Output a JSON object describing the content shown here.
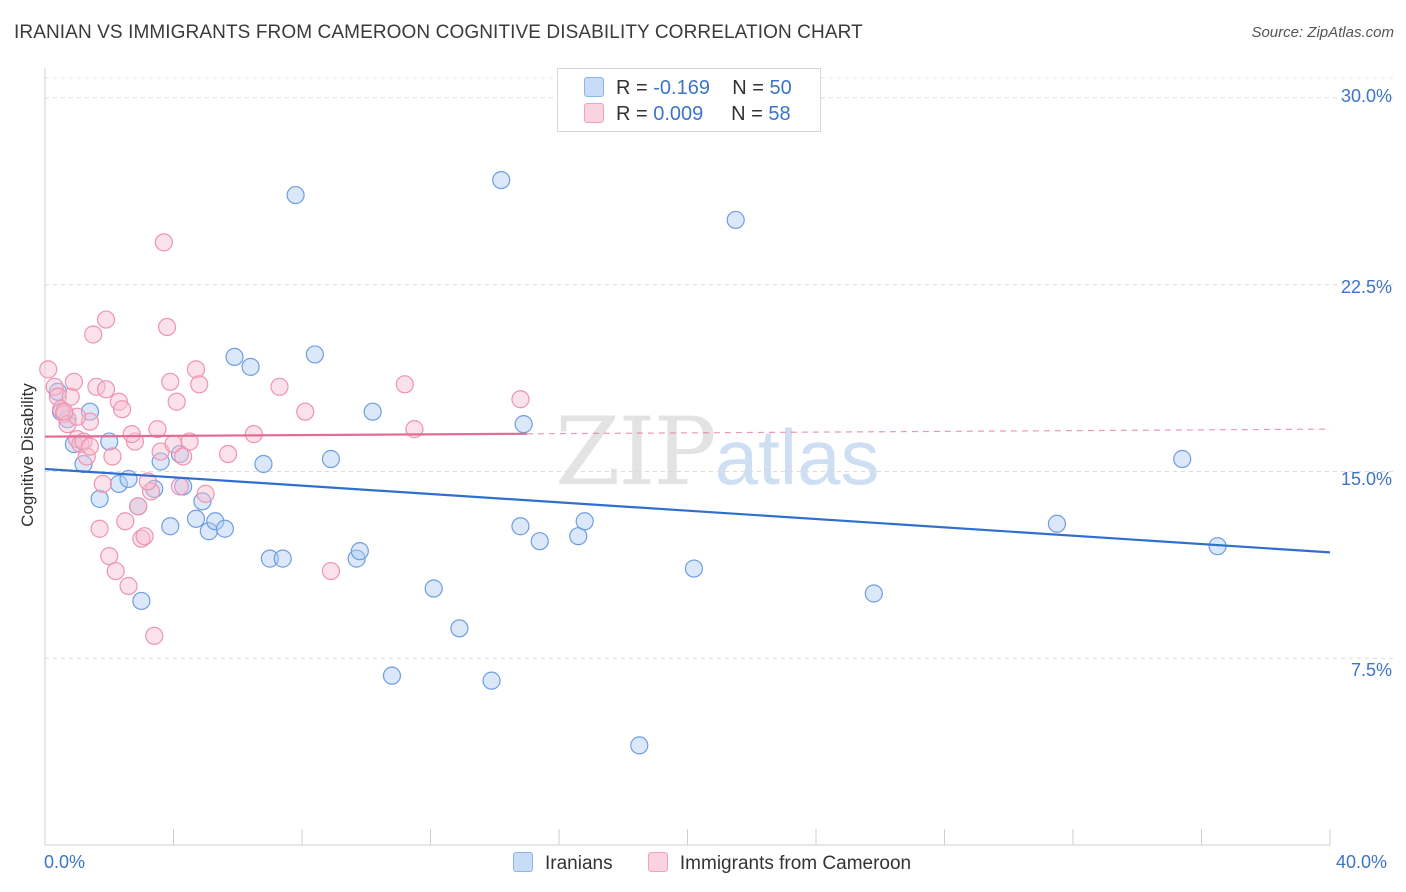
{
  "title": "IRANIAN VS IMMIGRANTS FROM CAMEROON COGNITIVE DISABILITY CORRELATION CHART",
  "source": "Source: ZipAtlas.com",
  "watermark": {
    "zip": "ZIP",
    "atlas": "atlas"
  },
  "legend": {
    "rows": [
      {
        "r_label": "R =",
        "r_value": "-0.169",
        "n_label": "N =",
        "n_value": "50",
        "color": "#aecbf2"
      },
      {
        "r_label": "R =",
        "r_value": "0.009",
        "n_label": "N =",
        "n_value": "58",
        "color": "#f7bfd0"
      }
    ]
  },
  "bottom_legend": [
    {
      "label": "Iranians",
      "color": "#aecbf2"
    },
    {
      "label": "Immigrants from Cameroon",
      "color": "#f7bfd0"
    }
  ],
  "chart_data": {
    "type": "scatter",
    "title": "IRANIAN VS IMMIGRANTS FROM CAMEROON COGNITIVE DISABILITY CORRELATION CHART",
    "xlabel": "",
    "ylabel": "Cognitive Disability",
    "xlim": [
      0,
      40
    ],
    "ylim": [
      0,
      30.8
    ],
    "x_tick_labels": [
      "0.0%",
      "40.0%"
    ],
    "y_ticks": [
      7.5,
      15.0,
      22.5,
      30.0
    ],
    "y_tick_labels": [
      "7.5%",
      "15.0%",
      "22.5%",
      "30.0%"
    ],
    "grid": true,
    "series": [
      {
        "name": "Iranians",
        "color": "#6f9ee0",
        "fill": "#aecbf2",
        "trend": {
          "x": [
            0,
            40
          ],
          "y": [
            15.1,
            11.75
          ],
          "color": "#2f6fce",
          "dashed_from": null
        },
        "points": [
          [
            0.4,
            18.2
          ],
          [
            0.5,
            17.4
          ],
          [
            0.7,
            17.1
          ],
          [
            0.9,
            16.1
          ],
          [
            1.2,
            15.3
          ],
          [
            1.4,
            17.4
          ],
          [
            1.7,
            13.9
          ],
          [
            2.0,
            16.2
          ],
          [
            2.3,
            14.5
          ],
          [
            2.6,
            14.7
          ],
          [
            2.9,
            13.6
          ],
          [
            3.0,
            9.8
          ],
          [
            3.4,
            14.3
          ],
          [
            3.6,
            15.4
          ],
          [
            3.9,
            12.8
          ],
          [
            4.2,
            15.7
          ],
          [
            4.3,
            14.4
          ],
          [
            4.7,
            13.1
          ],
          [
            4.9,
            13.8
          ],
          [
            5.1,
            12.6
          ],
          [
            5.3,
            13.0
          ],
          [
            5.6,
            12.7
          ],
          [
            5.9,
            19.6
          ],
          [
            6.4,
            19.2
          ],
          [
            6.8,
            15.3
          ],
          [
            7.0,
            11.5
          ],
          [
            7.4,
            11.5
          ],
          [
            7.8,
            26.1
          ],
          [
            8.4,
            19.7
          ],
          [
            8.9,
            15.5
          ],
          [
            9.7,
            11.5
          ],
          [
            9.8,
            11.8
          ],
          [
            10.2,
            17.4
          ],
          [
            10.8,
            6.8
          ],
          [
            12.1,
            10.3
          ],
          [
            12.9,
            8.7
          ],
          [
            13.9,
            6.6
          ],
          [
            14.2,
            26.7
          ],
          [
            14.8,
            12.8
          ],
          [
            14.9,
            16.9
          ],
          [
            15.4,
            12.2
          ],
          [
            16.6,
            12.4
          ],
          [
            16.8,
            13.0
          ],
          [
            18.5,
            4.0
          ],
          [
            20.2,
            11.1
          ],
          [
            21.5,
            25.1
          ],
          [
            25.8,
            10.1
          ],
          [
            31.5,
            12.9
          ],
          [
            35.4,
            15.5
          ],
          [
            36.5,
            12.0
          ]
        ]
      },
      {
        "name": "Immigrants from Cameroon",
        "color": "#ee94b0",
        "fill": "#f7bfd0",
        "trend": {
          "x": [
            0,
            40
          ],
          "y": [
            16.4,
            16.7
          ],
          "color": "#e26d94",
          "dashed_from": 15.0
        },
        "points": [
          [
            0.1,
            19.1
          ],
          [
            0.3,
            18.4
          ],
          [
            0.4,
            18.0
          ],
          [
            0.5,
            17.5
          ],
          [
            0.6,
            17.3
          ],
          [
            0.7,
            16.9
          ],
          [
            0.8,
            18.0
          ],
          [
            0.9,
            18.6
          ],
          [
            1.0,
            16.3
          ],
          [
            1.1,
            16.1
          ],
          [
            1.2,
            16.2
          ],
          [
            1.3,
            15.6
          ],
          [
            1.4,
            17.0
          ],
          [
            1.5,
            20.5
          ],
          [
            1.6,
            18.4
          ],
          [
            1.7,
            12.7
          ],
          [
            1.8,
            14.5
          ],
          [
            1.9,
            21.1
          ],
          [
            2.0,
            11.6
          ],
          [
            2.1,
            15.6
          ],
          [
            2.2,
            11.0
          ],
          [
            2.3,
            17.8
          ],
          [
            2.4,
            17.5
          ],
          [
            2.5,
            13.0
          ],
          [
            2.6,
            10.4
          ],
          [
            2.8,
            16.2
          ],
          [
            2.9,
            13.6
          ],
          [
            3.0,
            12.3
          ],
          [
            3.1,
            12.4
          ],
          [
            3.3,
            14.2
          ],
          [
            3.4,
            8.4
          ],
          [
            3.5,
            16.7
          ],
          [
            3.6,
            15.8
          ],
          [
            3.7,
            24.2
          ],
          [
            3.8,
            20.8
          ],
          [
            3.9,
            18.6
          ],
          [
            4.0,
            16.1
          ],
          [
            4.1,
            17.8
          ],
          [
            4.2,
            14.4
          ],
          [
            4.3,
            15.6
          ],
          [
            4.5,
            16.2
          ],
          [
            4.7,
            19.1
          ],
          [
            4.8,
            18.5
          ],
          [
            5.0,
            14.1
          ],
          [
            5.7,
            15.7
          ],
          [
            6.5,
            16.5
          ],
          [
            7.3,
            18.4
          ],
          [
            8.1,
            17.4
          ],
          [
            8.9,
            11.0
          ],
          [
            11.2,
            18.5
          ],
          [
            11.5,
            16.7
          ],
          [
            14.8,
            17.9
          ],
          [
            1.0,
            17.2
          ],
          [
            1.9,
            18.3
          ],
          [
            2.7,
            16.5
          ],
          [
            3.2,
            14.6
          ],
          [
            0.6,
            17.4
          ],
          [
            1.4,
            16.0
          ]
        ]
      }
    ]
  }
}
